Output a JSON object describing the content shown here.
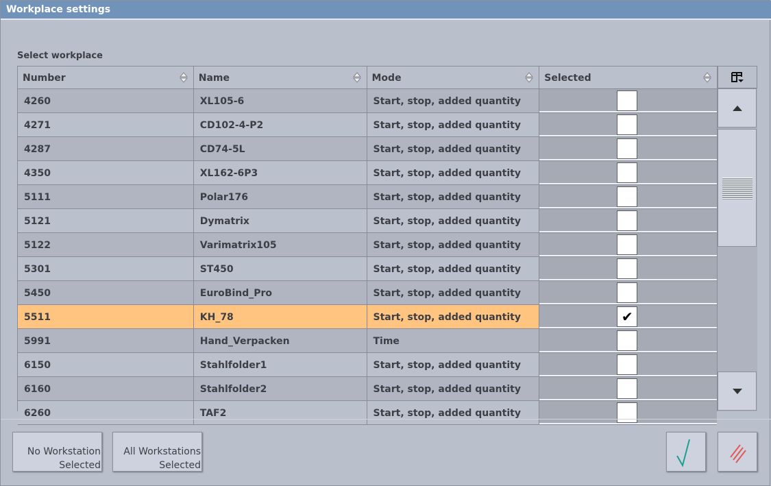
{
  "window": {
    "title": "Workplace settings"
  },
  "section_label": "Select workplace",
  "columns": [
    "Number",
    "Name",
    "Mode",
    "Selected"
  ],
  "rows": [
    {
      "number": "4260",
      "name": "XL105-6",
      "mode": "Start, stop, added quantity",
      "selected": ""
    },
    {
      "number": "4271",
      "name": "CD102-4-P2",
      "mode": "Start, stop, added quantity",
      "selected": ""
    },
    {
      "number": "4287",
      "name": "CD74-5L",
      "mode": "Start, stop, added quantity",
      "selected": ""
    },
    {
      "number": "4350",
      "name": "XL162-6P3",
      "mode": "Start, stop, added quantity",
      "selected": ""
    },
    {
      "number": "5111",
      "name": "Polar176",
      "mode": "Start, stop, added quantity",
      "selected": ""
    },
    {
      "number": "5121",
      "name": "Dymatrix",
      "mode": "Start, stop, added quantity",
      "selected": ""
    },
    {
      "number": "5122",
      "name": "Varimatrix105",
      "mode": "Start, stop, added quantity",
      "selected": ""
    },
    {
      "number": "5301",
      "name": "ST450",
      "mode": "Start, stop, added quantity",
      "selected": ""
    },
    {
      "number": "5450",
      "name": "EuroBind_Pro",
      "mode": "Start, stop, added quantity",
      "selected": ""
    },
    {
      "number": "5511",
      "name": "KH_78",
      "mode": "Start, stop, added quantity",
      "selected": "✔"
    },
    {
      "number": "5991",
      "name": "Hand_Verpacken",
      "mode": "Time",
      "selected": ""
    },
    {
      "number": "6150",
      "name": "Stahlfolder1",
      "mode": "Start, stop, added quantity",
      "selected": ""
    },
    {
      "number": "6160",
      "name": "Stahlfolder2",
      "mode": "Start, stop, added quantity",
      "selected": ""
    },
    {
      "number": "6260",
      "name": "TAF2",
      "mode": "Start, stop, added quantity",
      "selected": ""
    }
  ],
  "highlight_color": "#ffc580",
  "buttons": {
    "no_ws": [
      "No Workstation",
      "Selected"
    ],
    "all_ws": [
      "All Workstations",
      "Selected"
    ],
    "ok_icon": "checkmark-icon",
    "cancel_icon": "cancel-slashes-icon"
  }
}
